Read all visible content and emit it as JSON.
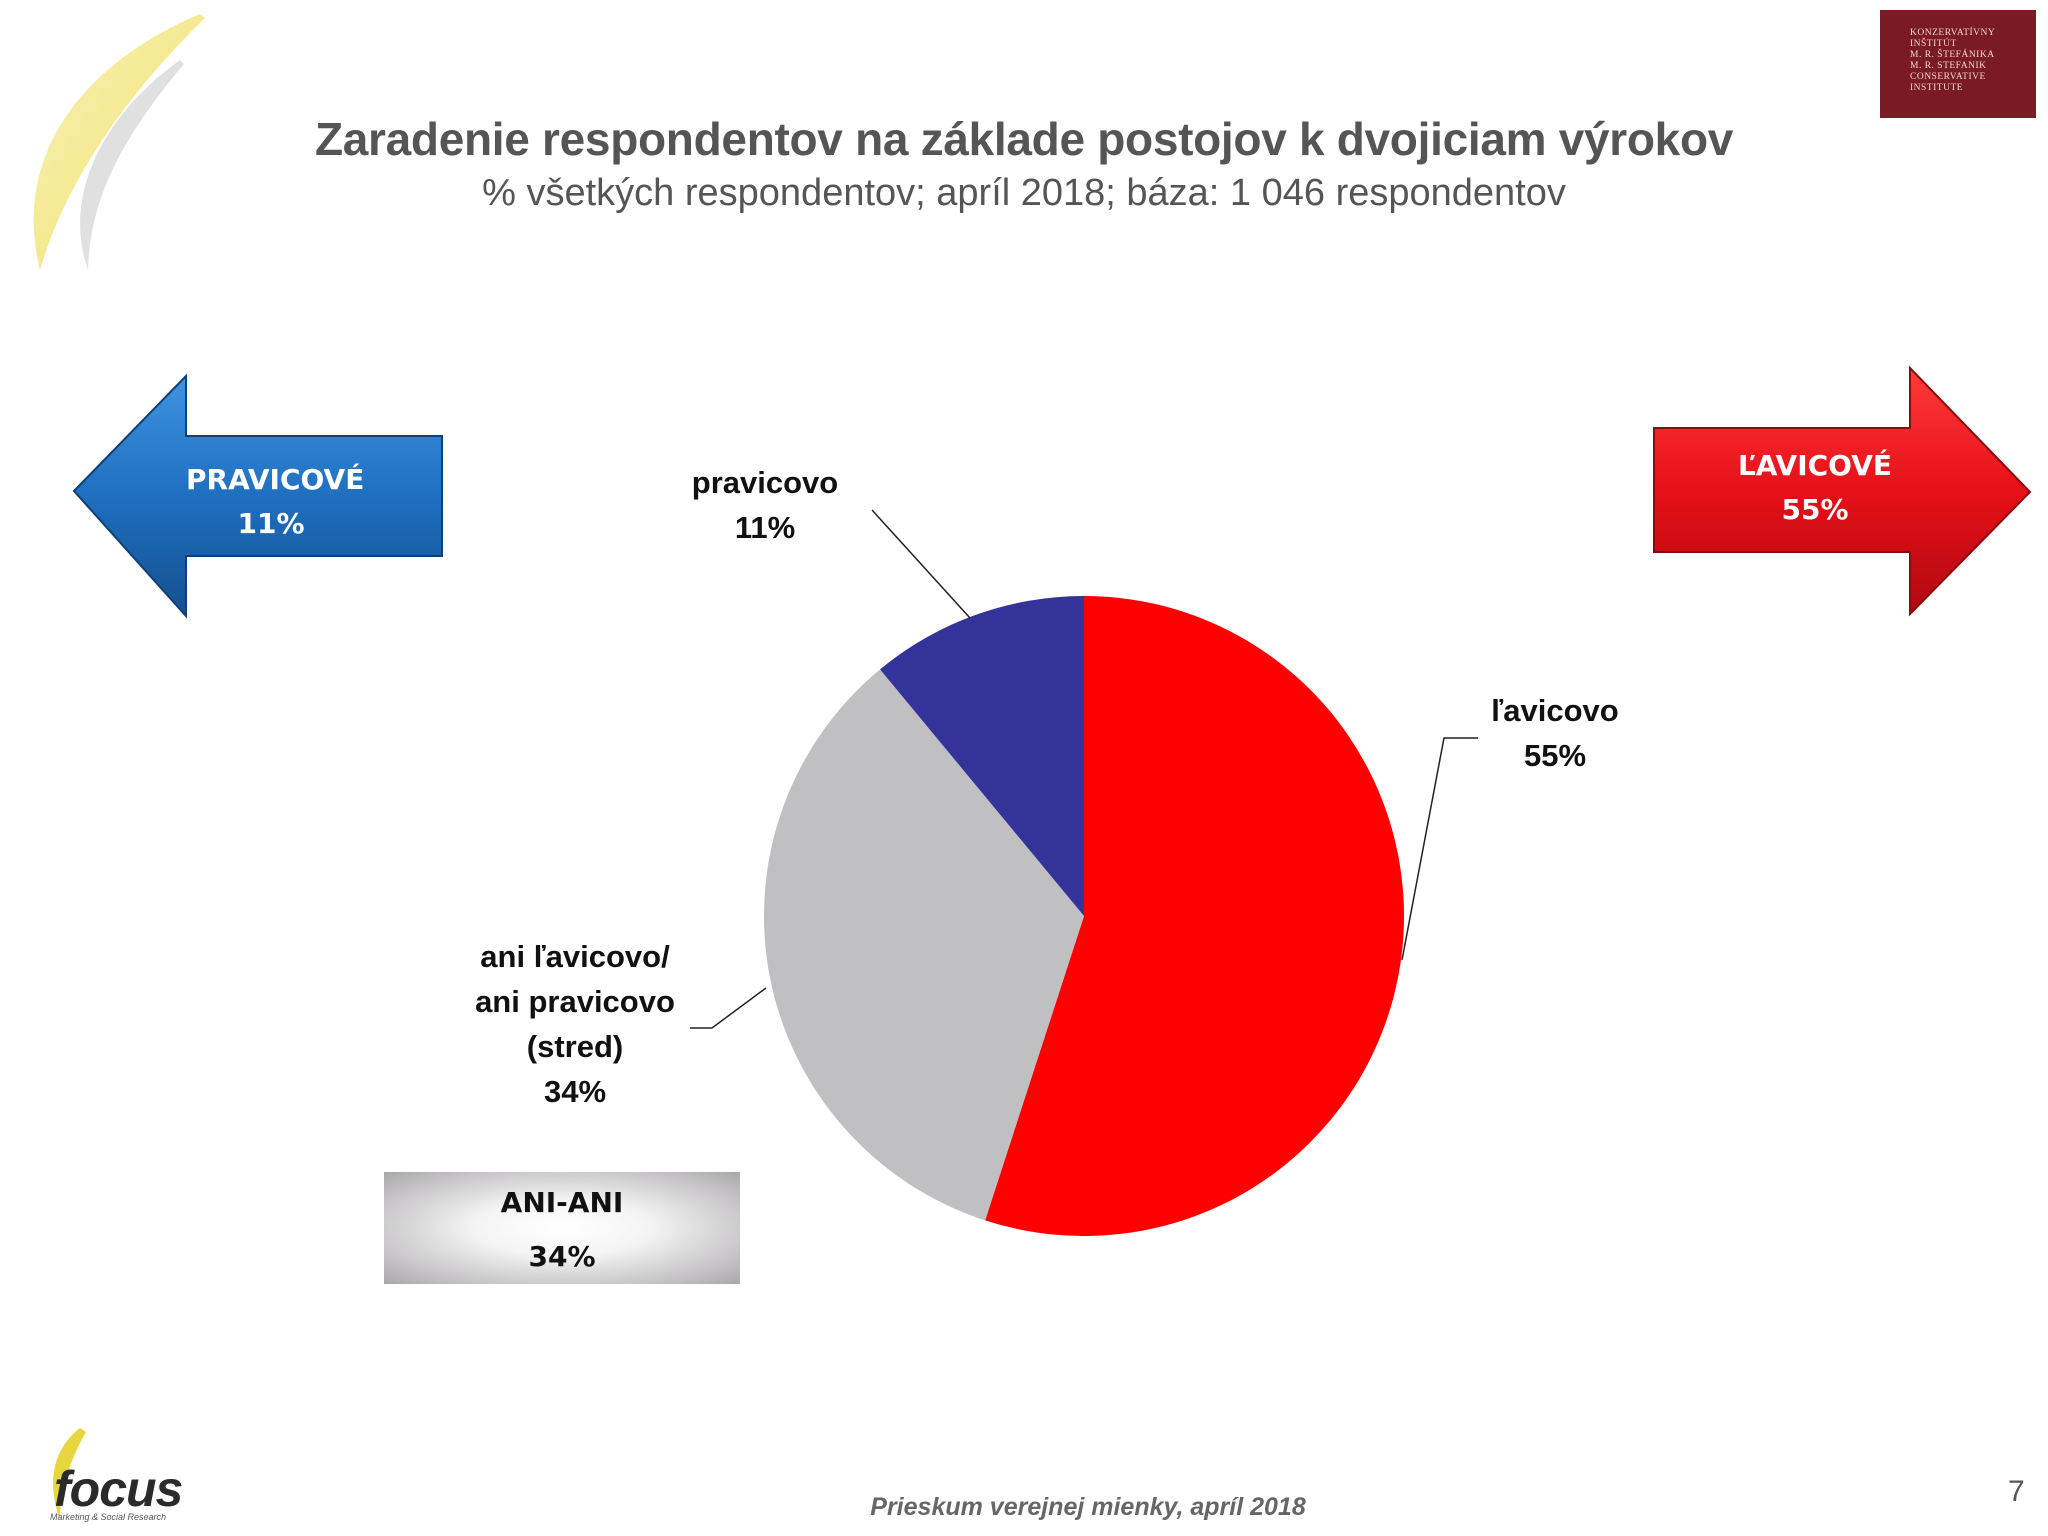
{
  "title": "Zaradenie respondentov na základe postojov k dvojiciam výrokov",
  "subtitle": "% všetkých respondentov; apríl 2018; báza: 1 046 respondentov",
  "institute_logo_text": "KONZERVATÍVNY\nINŠTITÚT\nM. R. ŠTEFÁNIKA\nM. R. STEFANIK\nCONSERVATIVE\nINSTITUTE",
  "arrows": {
    "left": {
      "line1": "PRAVICOVÉ",
      "line2": "11%",
      "color": "#1e73c8"
    },
    "right": {
      "line1": "ĽAVICOVÉ",
      "line2": "55%",
      "color": "#e8101a"
    }
  },
  "ani_box": {
    "line1": "ANI-ANI",
    "line2": "34%"
  },
  "chart_data": {
    "type": "pie",
    "title": "Zaradenie respondentov na základe postojov k dvojiciam výrokov",
    "subtitle": "% všetkých respondentov; apríl 2018; báza: 1 046 respondentov",
    "start_angle_deg": 0,
    "direction": "clockwise",
    "slices": [
      {
        "label": "ľavicovo",
        "value": 55,
        "color": "#fe0000",
        "label_lines": [
          "ľavicovo",
          "55%"
        ]
      },
      {
        "label": "ani ľavicovo/ ani pravicovo (stred)",
        "value": 34,
        "color": "#c0bfc1",
        "label_lines": [
          "ani ľavicovo/",
          "ani pravicovo",
          "(stred)",
          "34%"
        ]
      },
      {
        "label": "pravicovo",
        "value": 11,
        "color": "#333399",
        "label_lines": [
          "pravicovo",
          "11%"
        ]
      }
    ]
  },
  "footer": "Prieskum verejnej mienky, apríl 2018",
  "page_number": "7",
  "focus_logo": {
    "name": "focus",
    "tagline": "Marketing & Social Research"
  }
}
